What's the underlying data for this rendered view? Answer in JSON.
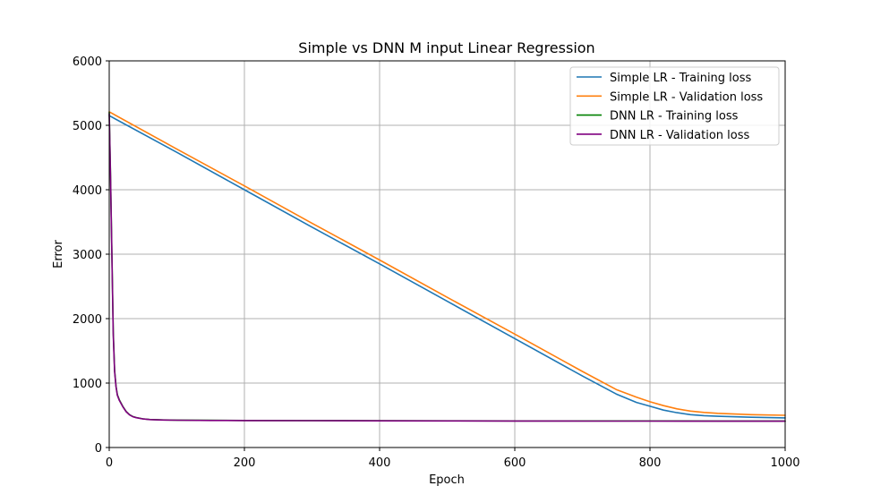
{
  "chart_data": {
    "type": "line",
    "title": "Simple vs DNN M input Linear Regression",
    "xlabel": "Epoch",
    "ylabel": "Error",
    "xlim": [
      0,
      1000
    ],
    "ylim": [
      0,
      6000
    ],
    "xticks": [
      0,
      200,
      400,
      600,
      800,
      1000
    ],
    "yticks": [
      0,
      1000,
      2000,
      3000,
      4000,
      5000,
      6000
    ],
    "grid": true,
    "legend_position": "top-right",
    "series": [
      {
        "name": "Simple LR - Training loss",
        "color": "#1f77b4",
        "x": [
          0,
          100,
          200,
          300,
          400,
          500,
          600,
          700,
          750,
          780,
          800,
          820,
          840,
          860,
          880,
          900,
          950,
          1000
        ],
        "y": [
          5150,
          4580,
          4000,
          3420,
          2850,
          2270,
          1690,
          1110,
          830,
          700,
          640,
          580,
          540,
          510,
          495,
          485,
          470,
          460
        ]
      },
      {
        "name": "Simple LR - Validation loss",
        "color": "#ff7f0e",
        "x": [
          0,
          100,
          200,
          300,
          400,
          500,
          600,
          700,
          750,
          780,
          800,
          820,
          840,
          860,
          880,
          900,
          950,
          1000
        ],
        "y": [
          5210,
          4630,
          4060,
          3480,
          2910,
          2330,
          1760,
          1180,
          900,
          780,
          710,
          650,
          600,
          565,
          545,
          530,
          510,
          500
        ]
      },
      {
        "name": "DNN LR - Training loss",
        "color": "#008000",
        "x": [
          0,
          2,
          4,
          6,
          8,
          10,
          12,
          15,
          20,
          25,
          30,
          35,
          40,
          50,
          60,
          80,
          100,
          150,
          200,
          300,
          400,
          500,
          600,
          700,
          800,
          900,
          1000
        ],
        "y": [
          5200,
          4200,
          3000,
          1800,
          1200,
          950,
          820,
          740,
          640,
          560,
          510,
          480,
          465,
          445,
          435,
          428,
          425,
          422,
          420,
          418,
          416,
          414,
          413,
          412,
          412,
          411,
          411
        ]
      },
      {
        "name": "DNN LR - Validation loss",
        "color": "#800080",
        "x": [
          0,
          2,
          4,
          6,
          8,
          10,
          12,
          15,
          20,
          25,
          30,
          35,
          40,
          50,
          60,
          80,
          100,
          150,
          200,
          300,
          400,
          500,
          600,
          700,
          800,
          900,
          1000
        ],
        "y": [
          5180,
          4150,
          2950,
          1750,
          1180,
          940,
          810,
          730,
          635,
          555,
          505,
          478,
          462,
          443,
          433,
          426,
          423,
          420,
          418,
          416,
          414,
          412,
          411,
          410,
          410,
          409,
          409
        ]
      }
    ]
  }
}
